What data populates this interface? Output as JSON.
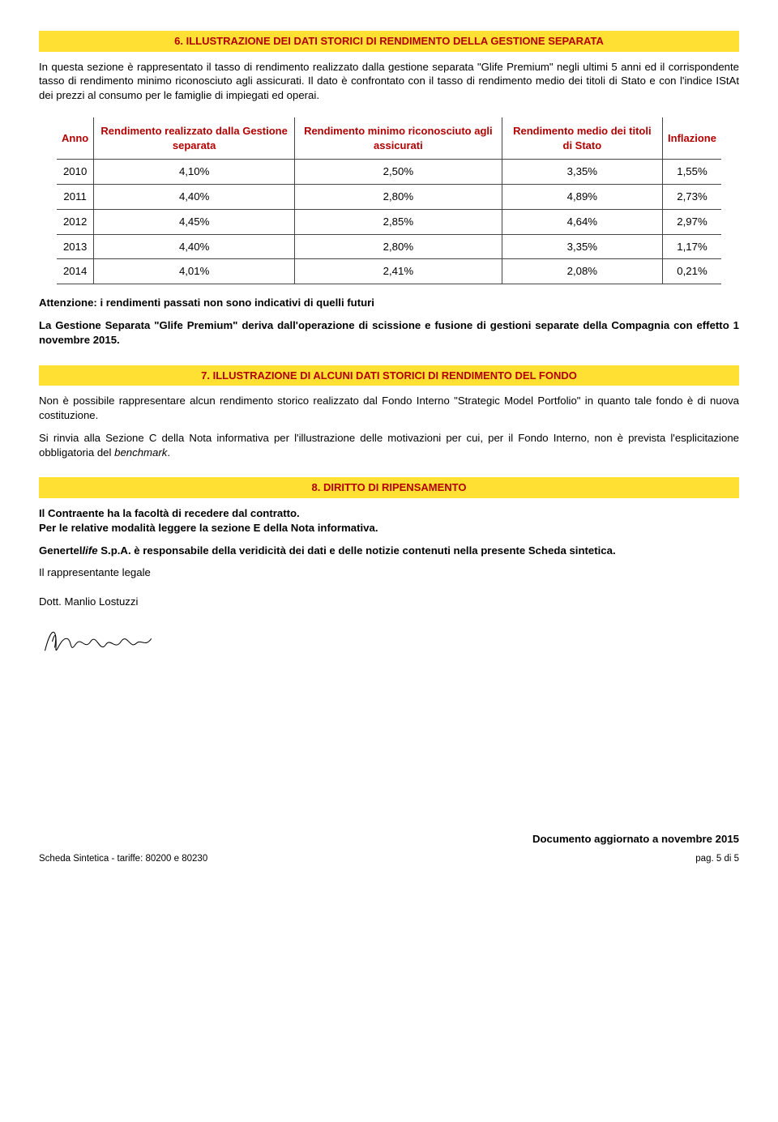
{
  "section6": {
    "title": "6. ILLUSTRAZIONE DEI DATI STORICI DI RENDIMENTO DELLA GESTIONE SEPARATA",
    "intro": "In questa sezione è rappresentato il tasso di rendimento realizzato dalla gestione separata \"Glife Premium\" negli ultimi 5 anni ed il corrispondente tasso di rendimento minimo riconosciuto agli assicurati. Il dato è confrontato con il tasso di rendimento medio dei titoli di Stato e con l'indice IStAt dei prezzi al consumo per le famiglie di impiegati ed operai."
  },
  "table": {
    "columns": [
      "Anno",
      "Rendimento realizzato dalla Gestione separata",
      "Rendimento minimo riconosciuto agli assicurati",
      "Rendimento medio dei titoli di Stato",
      "Inflazione"
    ],
    "rows": [
      [
        "2010",
        "4,10%",
        "2,50%",
        "3,35%",
        "1,55%"
      ],
      [
        "2011",
        "4,40%",
        "2,80%",
        "4,89%",
        "2,73%"
      ],
      [
        "2012",
        "4,45%",
        "2,85%",
        "4,64%",
        "2,97%"
      ],
      [
        "2013",
        "4,40%",
        "2,80%",
        "3,35%",
        "1,17%"
      ],
      [
        "2014",
        "4,01%",
        "2,41%",
        "2,08%",
        "0,21%"
      ]
    ],
    "header_color": "#b30000",
    "border_color": "#444444"
  },
  "warning": "Attenzione: i rendimenti passati non sono indicativi di quelli futuri",
  "section6_para2": "La Gestione Separata \"Glife Premium\" deriva dall'operazione di scissione e fusione di gestioni separate della Compagnia con effetto 1 novembre 2015.",
  "section7": {
    "title": "7. ILLUSTRAZIONE DI ALCUNI DATI STORICI DI RENDIMENTO DEL FONDO",
    "para1": "Non è possibile rappresentare alcun rendimento storico realizzato dal Fondo Interno \"Strategic Model Portfolio\" in quanto tale fondo è di nuova costituzione.",
    "para2_pre": "Si rinvia alla Sezione C della Nota informativa per l'illustrazione delle motivazioni per cui, per il Fondo Interno, non è prevista l'esplicitazione obbligatoria del ",
    "para2_italic": "benchmark",
    "para2_post": "."
  },
  "section8": {
    "title": "8. DIRITTO DI RIPENSAMENTO",
    "line1": "Il Contraente ha la facoltà di recedere dal contratto.",
    "line2": "Per le relative modalità leggere la sezione E della Nota informativa.",
    "line3_pre": "Genertel",
    "line3_italic": "life",
    "line3_post": " S.p.A. è responsabile della veridicità dei dati e delle notizie contenuti nella presente Scheda sintetica.",
    "rep_label": "Il rappresentante legale",
    "rep_name": "Dott. Manlio Lostuzzi"
  },
  "footer": {
    "updated": "Documento aggiornato a novembre 2015",
    "left": "Scheda Sintetica - tariffe: 80200 e 80230",
    "right": "pag. 5 di 5"
  },
  "colors": {
    "accent_bg": "#ffe033",
    "accent_text": "#b30000"
  }
}
